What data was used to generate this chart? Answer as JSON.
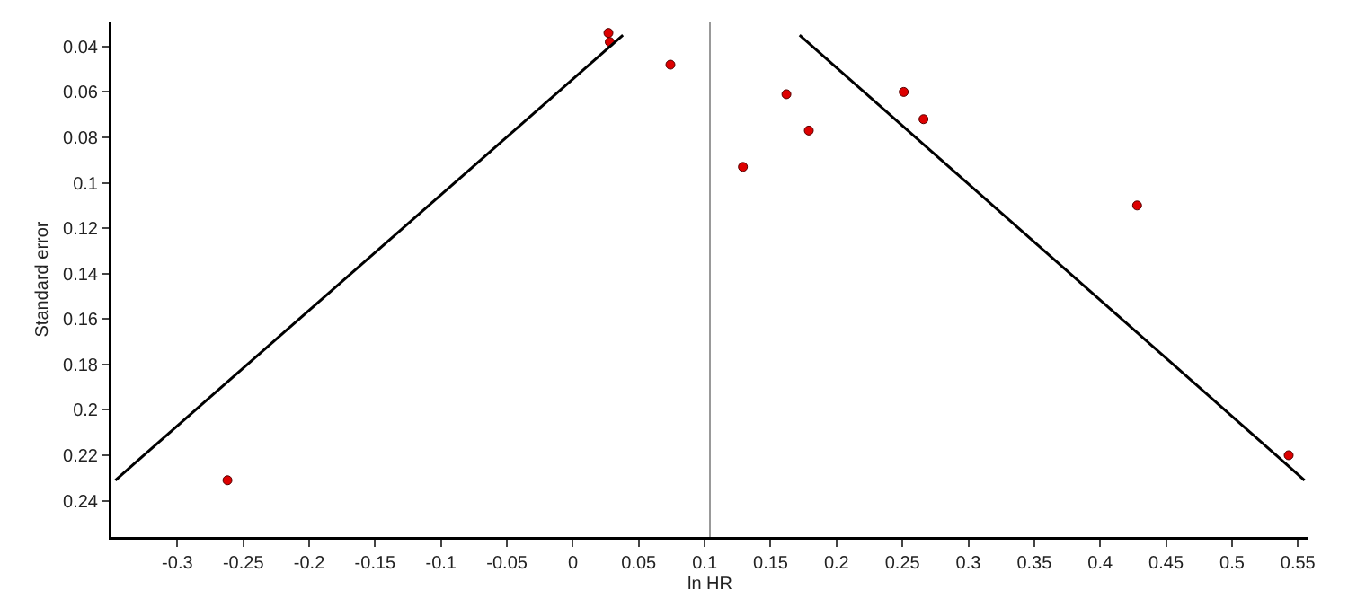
{
  "chart_data": {
    "type": "scatter",
    "xlabel": "ln HR",
    "ylabel": "Standard error",
    "xlim": [
      -0.35,
      0.558
    ],
    "ylim": [
      0.256,
      0.029
    ],
    "xticks": [
      -0.3,
      -0.25,
      -0.2,
      -0.15,
      -0.1,
      -0.05,
      0,
      0.05,
      0.1,
      0.15,
      0.2,
      0.25,
      0.3,
      0.35,
      0.4,
      0.45,
      0.5,
      0.55
    ],
    "yticks": [
      0.04,
      0.06,
      0.08,
      0.1,
      0.12,
      0.14,
      0.16,
      0.18,
      0.2,
      0.22,
      0.24
    ],
    "grid": false,
    "marker": "circle",
    "ref_lines": [
      {
        "axis": "x",
        "value": 0.104,
        "color": "#999999"
      }
    ],
    "series": [
      {
        "color": "#dd0000",
        "x": [
          0.027,
          0.028,
          0.074,
          -0.262,
          0.129,
          0.162,
          0.179,
          0.251,
          0.266,
          0.428,
          0.543
        ],
        "values": [
          0.034,
          0.038,
          0.048,
          0.231,
          0.093,
          0.061,
          0.077,
          0.06,
          0.072,
          0.11,
          0.22
        ]
      },
      {
        "type": "line",
        "color": "#000000",
        "marker": "none",
        "line_style": "solid",
        "x": [
          -0.347,
          0.038
        ],
        "values": [
          0.231,
          0.035
        ]
      },
      {
        "type": "line",
        "color": "#000000",
        "marker": "none",
        "line_style": "solid",
        "x": [
          0.172,
          0.555
        ],
        "values": [
          0.035,
          0.231
        ]
      }
    ]
  }
}
